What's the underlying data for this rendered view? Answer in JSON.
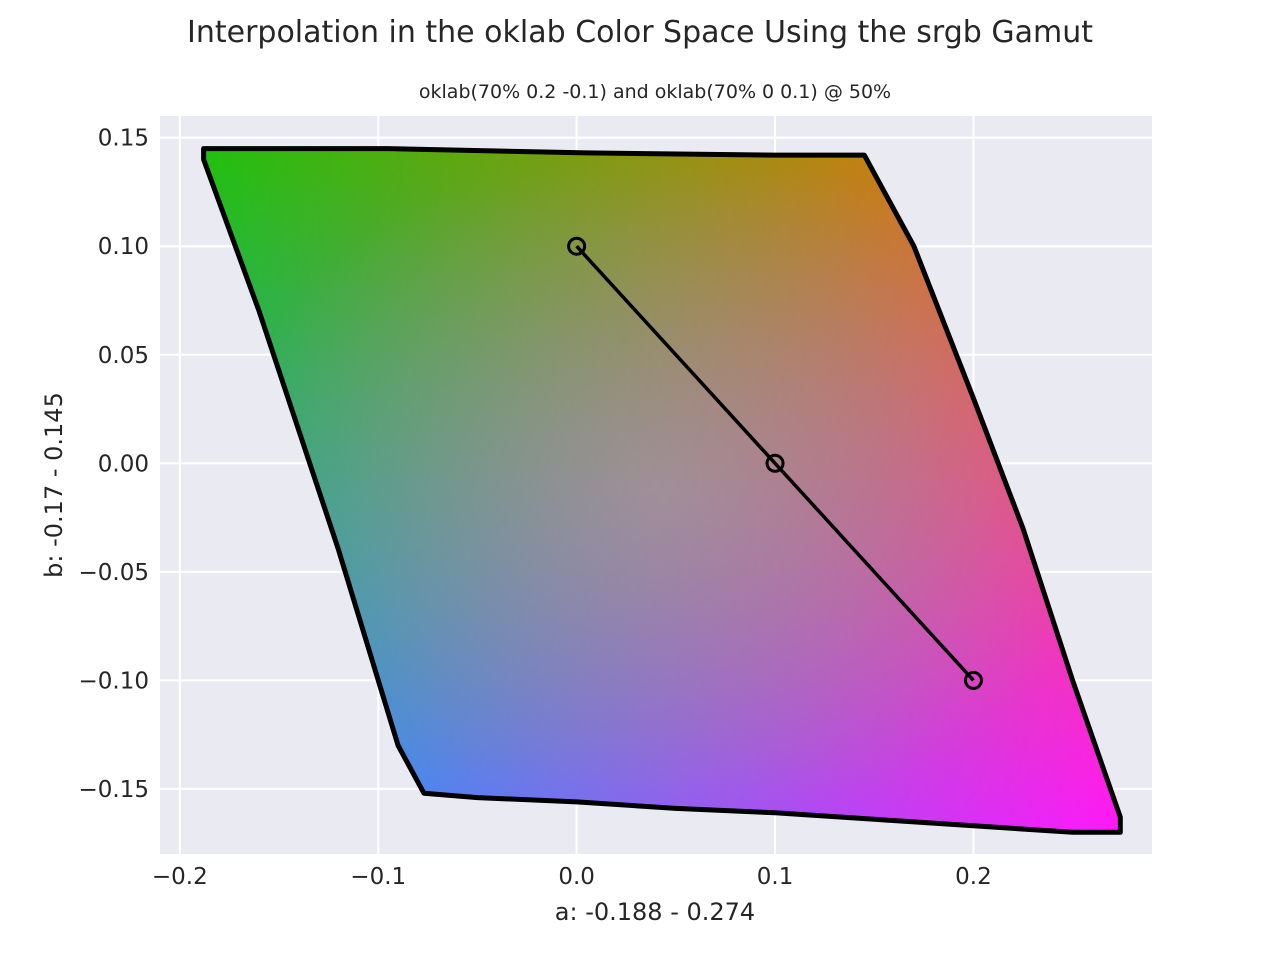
{
  "chart_data": {
    "type": "scatter",
    "title": "Interpolation in the oklab Color Space Using the srgb Gamut",
    "subtitle": "oklab(70% 0.2 -0.1) and oklab(70% 0 0.1) @ 50%",
    "xlabel": "a: -0.188 - 0.274",
    "ylabel": "b: -0.17 - 0.145",
    "xlim": [
      -0.21,
      0.29
    ],
    "ylim": [
      -0.18,
      0.16
    ],
    "xticks": [
      -0.2,
      -0.1,
      0.0,
      0.1,
      0.2
    ],
    "xtick_labels": [
      "−0.2",
      "−0.1",
      "0.0",
      "0.1",
      "0.2"
    ],
    "yticks": [
      0.15,
      0.1,
      0.05,
      0.0,
      -0.05,
      -0.1,
      -0.15
    ],
    "ytick_labels": [
      "0.15",
      "0.10",
      "0.05",
      "0.00",
      "−0.05",
      "−0.10",
      "−0.15"
    ],
    "grid": true,
    "background": "#eaeaf2",
    "gamut_boundary": {
      "color": "#000000",
      "points": [
        [
          -0.188,
          0.145
        ],
        [
          -0.095,
          0.145
        ],
        [
          0.005,
          0.143
        ],
        [
          0.1,
          0.142
        ],
        [
          0.145,
          0.142
        ],
        [
          0.17,
          0.1
        ],
        [
          0.2,
          0.03
        ],
        [
          0.225,
          -0.03
        ],
        [
          0.25,
          -0.1
        ],
        [
          0.274,
          -0.163
        ],
        [
          0.274,
          -0.17
        ],
        [
          0.25,
          -0.17
        ],
        [
          0.2,
          -0.167
        ],
        [
          0.15,
          -0.164
        ],
        [
          0.1,
          -0.161
        ],
        [
          0.05,
          -0.159
        ],
        [
          0.0,
          -0.156
        ],
        [
          -0.05,
          -0.154
        ],
        [
          -0.077,
          -0.152
        ],
        [
          -0.09,
          -0.13
        ],
        [
          -0.12,
          -0.04
        ],
        [
          -0.16,
          0.07
        ],
        [
          -0.188,
          0.14
        ]
      ]
    },
    "corner_colors": {
      "top_left": "#22c00e",
      "top_right": "#ff6a10",
      "bottom_left": "#18a4ff",
      "bottom_right": "#ff18f8",
      "center": "#b0a0a8"
    },
    "interpolation_line": {
      "color": "#000000",
      "points": [
        {
          "a": 0.0,
          "b": 0.1
        },
        {
          "a": 0.1,
          "b": 0.0
        },
        {
          "a": 0.2,
          "b": -0.1
        }
      ]
    }
  }
}
